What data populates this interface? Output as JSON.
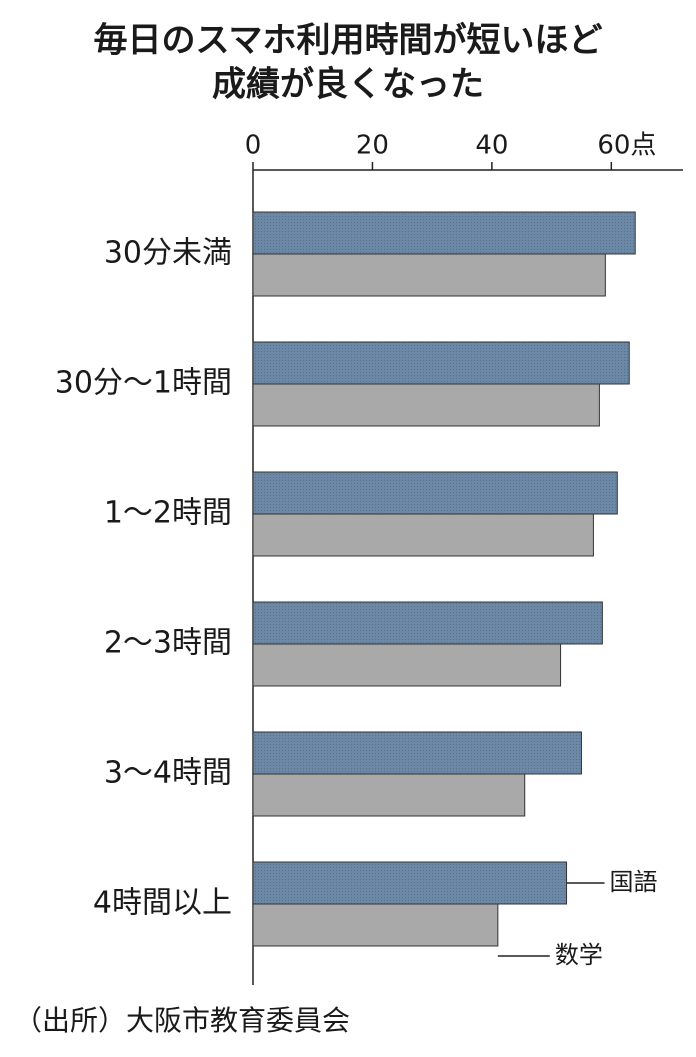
{
  "chart_data": {
    "type": "bar",
    "orientation": "horizontal",
    "title": [
      "毎日のスマホ利用時間が短いほど",
      "成績が良くなった"
    ],
    "categories": [
      "30分未満",
      "30分〜1時間",
      "1〜2時間",
      "2〜3時間",
      "3〜4時間",
      "4時間以上"
    ],
    "series": [
      {
        "name": "国語",
        "color": "#6b89a6",
        "values": [
          64,
          63,
          61,
          58.5,
          55,
          52.5
        ]
      },
      {
        "name": "数学",
        "color": "#a9a9a9",
        "values": [
          59,
          58,
          57,
          51.5,
          45.5,
          41
        ]
      }
    ],
    "xlim": [
      0,
      72
    ],
    "xticks": [
      0,
      20,
      40,
      {
        "value": 60,
        "label": "60点"
      }
    ],
    "source": "（出所）大阪市教育委員会"
  }
}
